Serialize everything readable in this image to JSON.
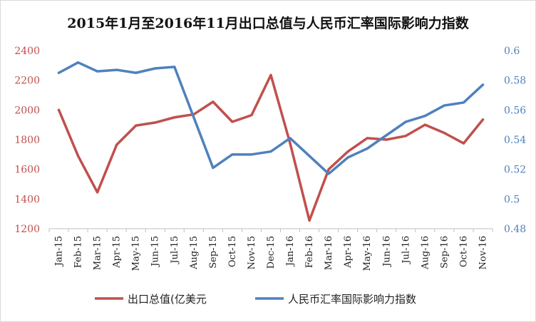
{
  "chart_data": {
    "type": "line",
    "title": "2015年1月至2016年11月出口总值与人民币汇率国际影响力指数",
    "categories": [
      "Jan-15",
      "Feb-15",
      "Mar-15",
      "Apr-15",
      "May-15",
      "Jun-15",
      "Jul-15",
      "Aug-15",
      "Sep-15",
      "Oct-15",
      "Nov-15",
      "Dec-15",
      "Jan-16",
      "Feb-16",
      "Mar-16",
      "Apr-16",
      "May-16",
      "Jun-16",
      "Jul-16",
      "Aug-16",
      "Sep-16",
      "Oct-16",
      "Nov-16"
    ],
    "series": [
      {
        "name": "出口总值(亿美元",
        "axis": "left",
        "color": "#c0504d",
        "values": [
          2000,
          1690,
          1445,
          1765,
          1895,
          1915,
          1950,
          1970,
          2055,
          1920,
          1965,
          2235,
          1775,
          1255,
          1600,
          1720,
          1810,
          1800,
          1825,
          1900,
          1845,
          1775,
          1935
        ]
      },
      {
        "name": "人民币汇率国际影响力指数",
        "axis": "right",
        "color": "#4f81bd",
        "values": [
          0.585,
          0.592,
          0.586,
          0.587,
          0.585,
          0.588,
          0.589,
          0.555,
          0.521,
          0.53,
          0.53,
          0.532,
          0.541,
          0.529,
          0.517,
          0.528,
          0.534,
          0.543,
          0.552,
          0.556,
          0.563,
          0.565,
          0.577
        ]
      }
    ],
    "y_left": {
      "ylim": [
        1200,
        2400
      ],
      "ticks": [
        1200,
        1400,
        1600,
        1800,
        2000,
        2200,
        2400
      ]
    },
    "y_right": {
      "ylim": [
        0.48,
        0.6
      ],
      "ticks": [
        "0.48",
        "0.5",
        "0.52",
        "0.54",
        "0.56",
        "0.58",
        "0.6"
      ]
    },
    "grid": false,
    "legend": "bottom"
  }
}
